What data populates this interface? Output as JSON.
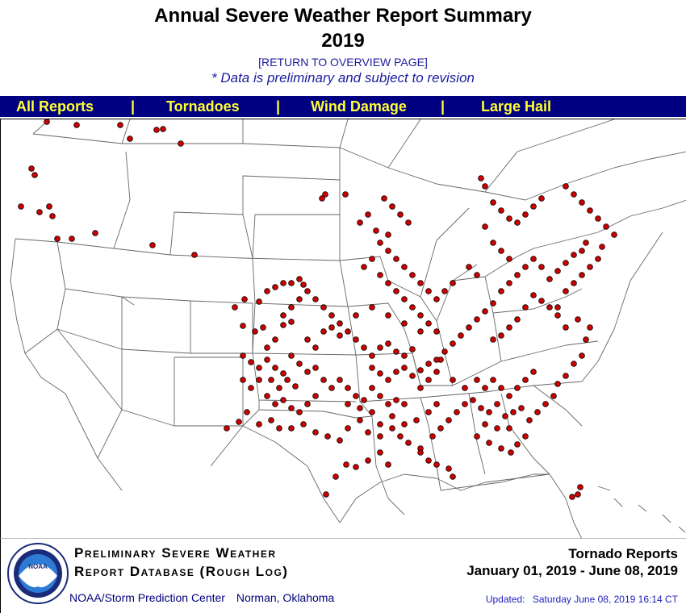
{
  "header": {
    "title": "Annual Severe Weather Report Summary",
    "year": "2019",
    "return_link": "[RETURN TO OVERVIEW PAGE]",
    "note": "* Data is preliminary and subject to revision"
  },
  "nav": {
    "items": [
      "All Reports",
      "Tornadoes",
      "Wind Damage",
      "Large Hail"
    ],
    "separator": "|"
  },
  "map": {
    "report_type": "tornado",
    "marker_color": "#cc0000",
    "marker_outline": "#000000",
    "boundary_color": "#666666"
  },
  "legend": {
    "db_title_line1": "Preliminary Severe Weather",
    "db_title_line2": "Report Database (Rough Log)",
    "org": "NOAA/Storm Prediction Center",
    "location": "Norman, Oklahoma",
    "report_type": "Tornado Reports",
    "date_range": "January 01, 2019 - June 08, 2019",
    "updated_label": "Updated:",
    "updated_value": "Saturday June 08, 2019 16:14 CT",
    "logo_text": "NOAA"
  },
  "colors": {
    "nav_bg": "#000080",
    "nav_text": "#ffff33",
    "link_blue": "#1c1ca0"
  }
}
